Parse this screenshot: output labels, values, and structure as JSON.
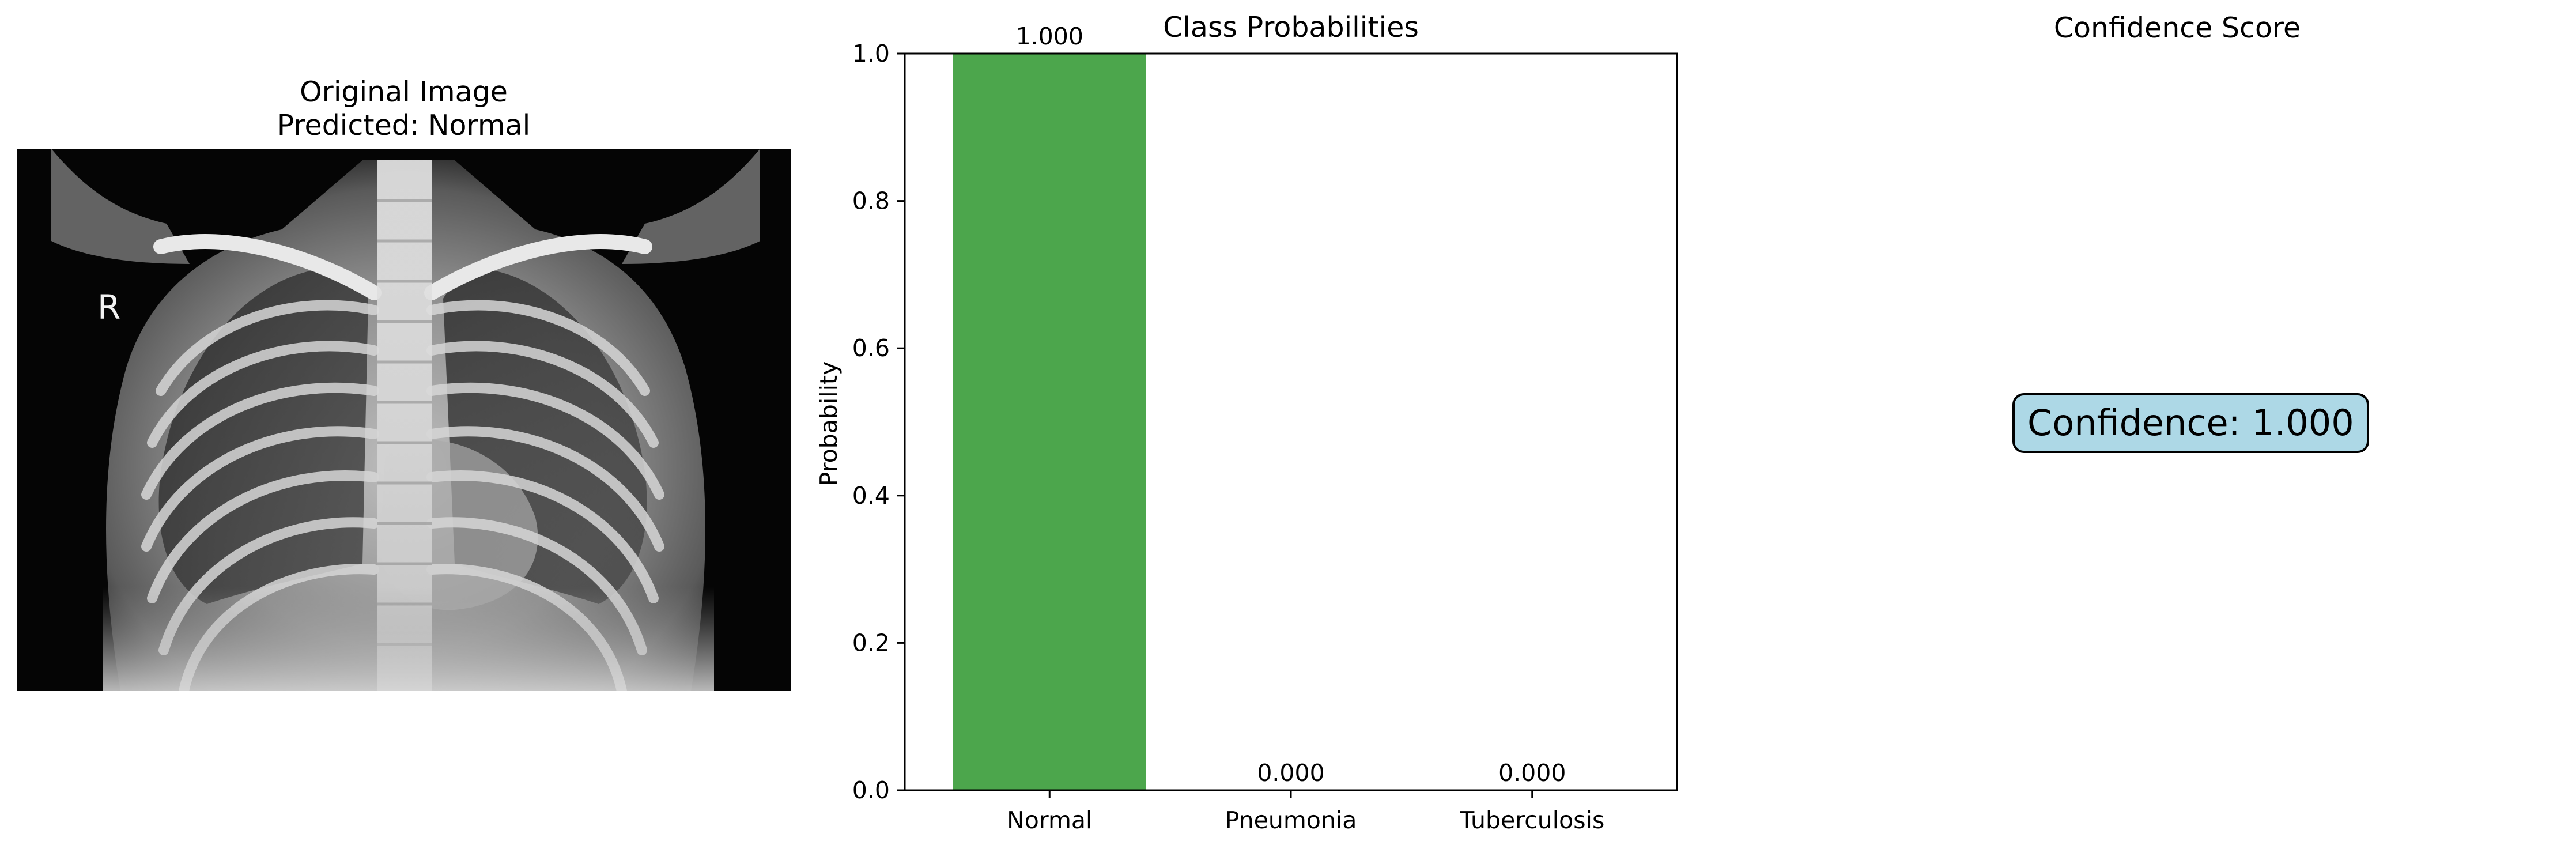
{
  "left_panel": {
    "title_line1": "Original Image",
    "title_line2": "Predicted: Normal",
    "image_marker_letter": "R"
  },
  "chart_data": {
    "type": "bar",
    "title": "Class Probabilities",
    "xlabel": "",
    "ylabel": "Probability",
    "categories": [
      "Normal",
      "Pneumonia",
      "Tuberculosis"
    ],
    "values": [
      1.0,
      0.0,
      0.0
    ],
    "value_labels": [
      "1.000",
      "0.000",
      "0.000"
    ],
    "bar_colors": [
      "#4ca64c",
      "#e04c4c",
      "#e04c4c"
    ],
    "ylim": [
      0,
      1
    ],
    "yticks": [
      0.0,
      0.2,
      0.4,
      0.6,
      0.8,
      1.0
    ],
    "ytick_labels": [
      "0.0",
      "0.2",
      "0.4",
      "0.6",
      "0.8",
      "1.0"
    ],
    "grid": false,
    "legend": "none"
  },
  "confidence_panel": {
    "title": "Confidence Score",
    "text": "Confidence: 1.000",
    "box_color": "#add8e6"
  }
}
